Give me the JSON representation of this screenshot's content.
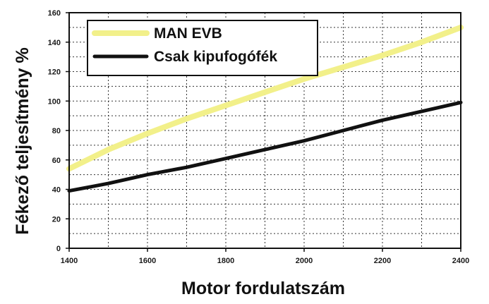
{
  "chart_data": {
    "type": "line",
    "xlabel": "Motor fordulatszám",
    "ylabel": "Fékező teljesítmény %",
    "xlim": [
      1400,
      2400
    ],
    "ylim": [
      0,
      160
    ],
    "x_ticks": [
      "1400",
      "1600",
      "1800",
      "2000",
      "2200",
      "2400"
    ],
    "y_ticks": [
      "0",
      "20",
      "40",
      "60",
      "80",
      "100",
      "120",
      "140",
      "160"
    ],
    "grid": true,
    "legend": "top-left",
    "series": [
      {
        "name": "MAN EVB",
        "color": "#f2f08a",
        "x": [
          1400,
          1500,
          1600,
          1700,
          1800,
          1900,
          2000,
          2100,
          2200,
          2300,
          2400
        ],
        "values": [
          54,
          67,
          78,
          88,
          97,
          106,
          115,
          123,
          131,
          140,
          150
        ]
      },
      {
        "name": "Csak kipufogófék",
        "color": "#111111",
        "x": [
          1400,
          1500,
          1600,
          1700,
          1800,
          1900,
          2000,
          2100,
          2200,
          2300,
          2400
        ],
        "values": [
          39,
          44,
          50,
          55,
          61,
          67,
          73,
          80,
          87,
          93,
          99
        ]
      }
    ]
  }
}
